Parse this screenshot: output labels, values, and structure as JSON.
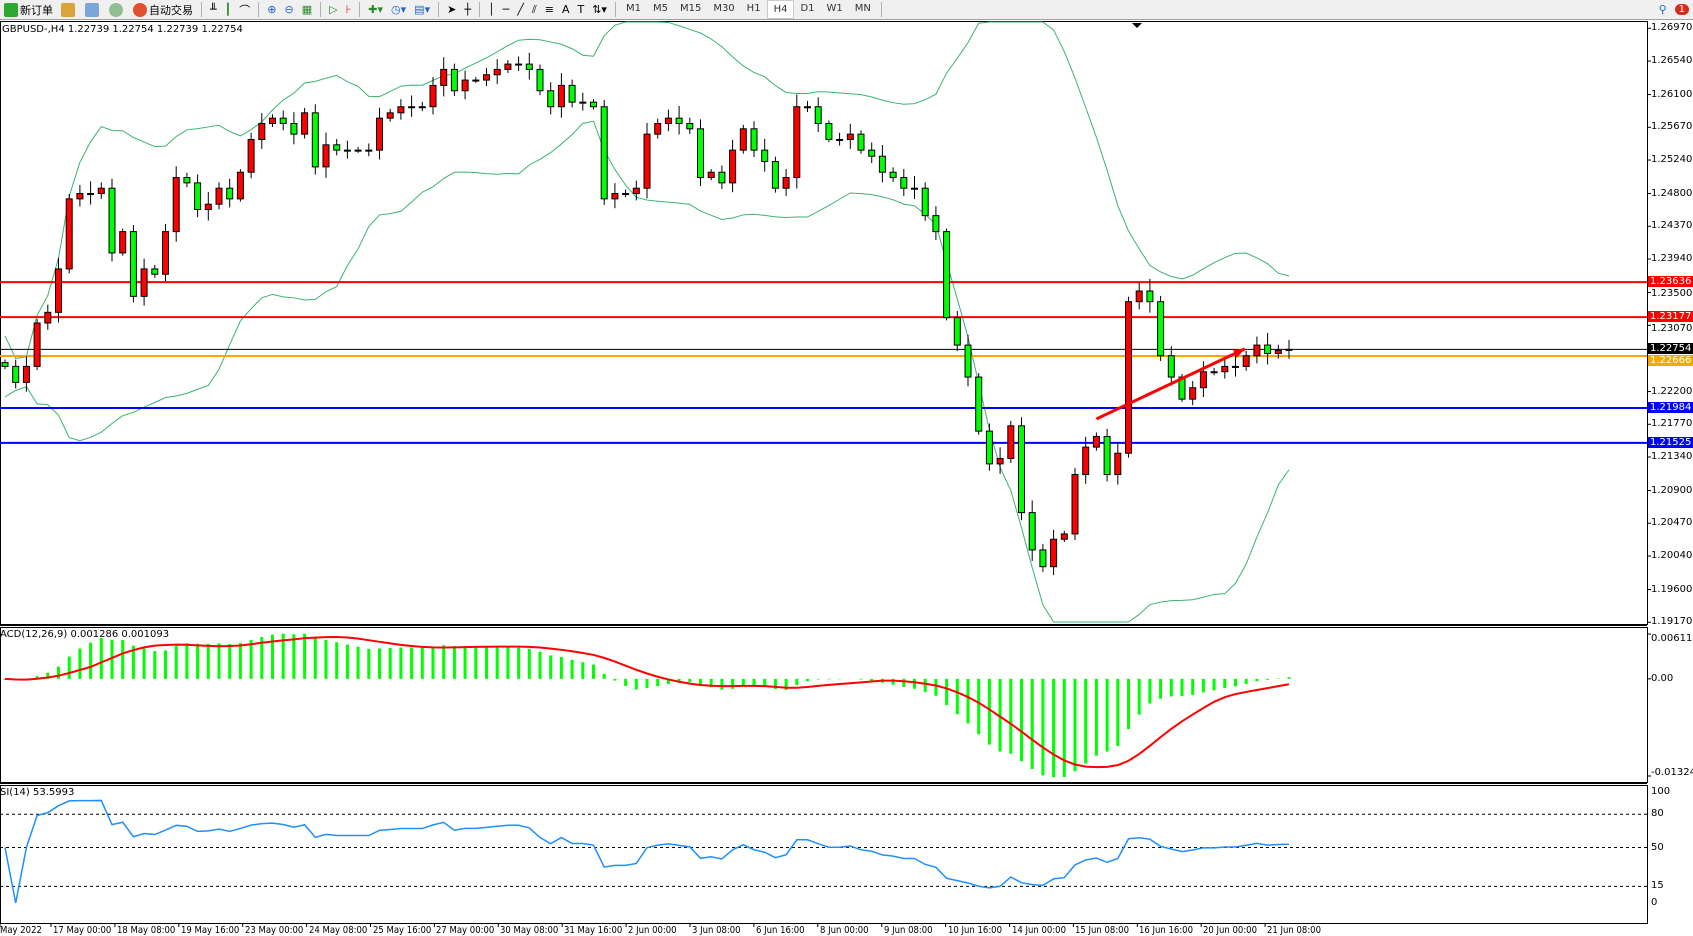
{
  "toolbar": {
    "new_order": "新订单",
    "auto_trading": "自动交易",
    "timeframes": [
      "M1",
      "M5",
      "M15",
      "M30",
      "H1",
      "H4",
      "D1",
      "W1",
      "MN"
    ],
    "active_timeframe": "H4",
    "notification_count": "1"
  },
  "chart_header": "GBPUSD-,H4  1.22739 1.22754 1.22739 1.22754",
  "colors": {
    "bull": "#ff0000",
    "bear": "#00ff00",
    "bands": "#3cb371",
    "macd_hist": "#00ff00",
    "macd_signal": "#ff0000",
    "rsi": "#1e90ff"
  },
  "chart_data": [
    {
      "type": "candlestick",
      "symbol": "GBPUSD-",
      "timeframe": "H4",
      "ohlc_last": {
        "open": 1.22739,
        "high": 1.22754,
        "low": 1.22739,
        "close": 1.22754
      },
      "closes": [
        1.2253,
        1.2232,
        1.2253,
        1.231,
        1.2324,
        1.2381,
        1.2473,
        1.248,
        1.248,
        1.2487,
        1.2402,
        1.243,
        1.2345,
        1.2381,
        1.2374,
        1.243,
        1.2501,
        1.2494,
        1.2459,
        1.2466,
        1.2487,
        1.2473,
        1.2508,
        1.2551,
        1.2572,
        1.2579,
        1.2572,
        1.2558,
        1.2586,
        1.2515,
        1.2544,
        1.2537,
        1.2537,
        1.2537,
        1.2537,
        1.2579,
        1.2586,
        1.2594,
        1.2594,
        1.2594,
        1.2622,
        1.2643,
        1.2615,
        1.2629,
        1.2629,
        1.2636,
        1.2643,
        1.265,
        1.265,
        1.2643,
        1.2615,
        1.2594,
        1.2622,
        1.26,
        1.26,
        1.2594,
        1.2473,
        1.248,
        1.248,
        1.2487,
        1.2558,
        1.2572,
        1.2579,
        1.2572,
        1.2565,
        1.2501,
        1.2508,
        1.2494,
        1.2537,
        1.2565,
        1.2537,
        1.2522,
        1.2487,
        1.2501,
        1.2594,
        1.2594,
        1.2572,
        1.2551,
        1.2551,
        1.2558,
        1.2537,
        1.2529,
        1.2508,
        1.2501,
        1.2487,
        1.2487,
        1.2451,
        1.243,
        1.2317,
        1.2281,
        1.2239,
        1.2168,
        1.2125,
        1.2132,
        1.2175,
        1.2061,
        1.2012,
        1.199,
        1.2026,
        1.2033,
        1.2111,
        1.2147,
        1.2161,
        1.2111,
        1.2139,
        1.2338,
        1.2352,
        1.2338,
        1.2267,
        1.2239,
        1.221,
        1.2225,
        1.2246,
        1.2246,
        1.2253,
        1.2253,
        1.2267,
        1.2281,
        1.227,
        1.2274,
        1.22754
      ],
      "y_ticks": [
        "1.26970",
        "1.26540",
        "1.26100",
        "1.25670",
        "1.25240",
        "1.24800",
        "1.24370",
        "1.23940",
        "1.23500",
        "1.23070",
        "1.22200",
        "1.21770",
        "1.21340",
        "1.20900",
        "1.20470",
        "1.20040",
        "1.19600",
        "1.19170"
      ],
      "ylim": [
        1.1917,
        1.2697
      ],
      "x_ticks": [
        "May 2022",
        "17 May 00:00",
        "18 May 08:00",
        "19 May 16:00",
        "23 May 00:00",
        "24 May 08:00",
        "25 May 16:00",
        "27 May 00:00",
        "30 May 08:00",
        "31 May 16:00",
        "2 Jun 00:00",
        "3 Jun 08:00",
        "6 Jun 16:00",
        "8 Jun 00:00",
        "9 Jun 08:00",
        "10 Jun 16:00",
        "14 Jun 00:00",
        "15 Jun 08:00",
        "16 Jun 16:00",
        "20 Jun 00:00",
        "21 Jun 08:00"
      ],
      "overlays": "Bollinger Bands",
      "hlines": [
        {
          "value": "1.23636",
          "color": "#ff0000"
        },
        {
          "value": "1.23177",
          "color": "#ff0000"
        },
        {
          "value": "1.22754",
          "color": "#000000"
        },
        {
          "value": "1.22666",
          "color": "#ffa500"
        },
        {
          "value": "1.21984",
          "color": "#0000ff"
        },
        {
          "value": "1.21525",
          "color": "#0000ff"
        }
      ],
      "arrow": {
        "color": "#ff0000",
        "from": {
          "bar": 102,
          "price": 1.2184
        },
        "to": {
          "bar": 114,
          "price": 1.2276
        }
      }
    },
    {
      "type": "macd",
      "label": "ACD(12,26,9) 0.001286 0.001093",
      "y_ticks": [
        "0.006114",
        "0.00",
        "-0.013241"
      ],
      "ylim": [
        -0.013241,
        0.006114
      ]
    },
    {
      "type": "rsi",
      "label": "SI(14) 53.5993",
      "y_ticks": [
        "100",
        "80",
        "50",
        "15",
        "0"
      ],
      "levels": [
        80,
        50,
        15
      ],
      "ylim": [
        0,
        100
      ]
    }
  ]
}
